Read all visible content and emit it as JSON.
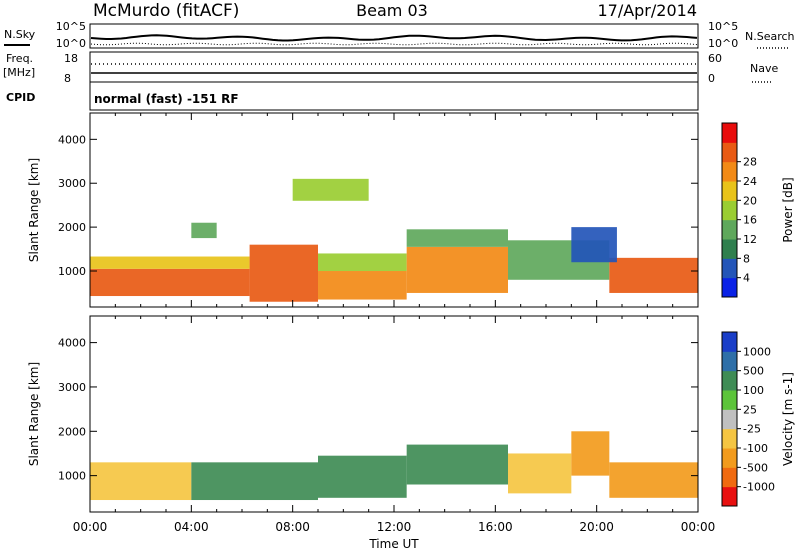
{
  "header": {
    "station": "McMurdo (fitACF)",
    "beam": "Beam 03",
    "date": "17/Apr/2014"
  },
  "summary": {
    "nsky_label": "N.Sky",
    "nsky_ticks": [
      "10^5",
      "10^0"
    ],
    "nsearch_label": "N.Search",
    "nsearch_ticks": [
      "10^5",
      "10^0"
    ],
    "freq_label_1": "Freq.",
    "freq_label_2": "[MHz]",
    "freq_ticks": [
      "18",
      "8"
    ],
    "nave_label": "Nave",
    "nave_ticks": [
      "60",
      "0"
    ],
    "cpid_label": "CPID",
    "cpid_text": "normal (fast) -151 RF"
  },
  "chart_data": [
    {
      "type": "heatmap",
      "name": "power-panel",
      "title": "",
      "xlabel": "",
      "ylabel": "Slant Range [km]",
      "xlim": [
        0,
        24
      ],
      "ylim": [
        180,
        4600
      ],
      "yticks": [
        1000,
        2000,
        3000,
        4000
      ],
      "colorbar": {
        "label": "Power [dB]",
        "ticks": [
          "4",
          "8",
          "12",
          "16",
          "20",
          "24",
          "28"
        ],
        "colors": [
          "#0a22e6",
          "#2355b8",
          "#2f7f4e",
          "#5fa85c",
          "#9acd32",
          "#e8c31a",
          "#f28a16",
          "#e85a14",
          "#e80c0c"
        ]
      },
      "regions": [
        {
          "t0": 0.0,
          "t1": 6.3,
          "r0": 430,
          "r1": 1050,
          "level": 28
        },
        {
          "t0": 0.0,
          "t1": 6.3,
          "r0": 1050,
          "r1": 1330,
          "level": 20
        },
        {
          "t0": 6.3,
          "t1": 9.0,
          "r0": 300,
          "r1": 1600,
          "level": 28
        },
        {
          "t0": 9.0,
          "t1": 12.5,
          "r0": 350,
          "r1": 1000,
          "level": 24
        },
        {
          "t0": 9.0,
          "t1": 12.5,
          "r0": 1000,
          "r1": 1400,
          "level": 16
        },
        {
          "t0": 12.5,
          "t1": 16.5,
          "r0": 500,
          "r1": 1550,
          "level": 24
        },
        {
          "t0": 12.5,
          "t1": 16.5,
          "r0": 1550,
          "r1": 1950,
          "level": 12
        },
        {
          "t0": 16.5,
          "t1": 20.5,
          "r0": 800,
          "r1": 1700,
          "level": 12
        },
        {
          "t0": 20.5,
          "t1": 24.0,
          "r0": 500,
          "r1": 1300,
          "level": 28
        },
        {
          "t0": 4.0,
          "t1": 5.0,
          "r0": 1750,
          "r1": 2100,
          "level": 12
        },
        {
          "t0": 8.0,
          "t1": 11.0,
          "r0": 2600,
          "r1": 3100,
          "level": 16
        },
        {
          "t0": 19.0,
          "t1": 20.8,
          "r0": 1200,
          "r1": 2000,
          "level": 4
        }
      ]
    },
    {
      "type": "heatmap",
      "name": "velocity-panel",
      "title": "",
      "xlabel": "Time UT",
      "ylabel": "Slant Range [km]",
      "xlim": [
        0,
        24
      ],
      "ylim": [
        180,
        4600
      ],
      "yticks": [
        1000,
        2000,
        3000,
        4000
      ],
      "xticks": [
        "00:00",
        "04:00",
        "08:00",
        "12:00",
        "16:00",
        "20:00",
        "00:00"
      ],
      "colorbar": {
        "label": "Velocity [m s-1]",
        "ticks": [
          "1000",
          "500",
          "100",
          "25",
          "-25",
          "-100",
          "-500",
          "-1000"
        ],
        "colors": [
          "#1a3ec8",
          "#2e6fa8",
          "#3f8c55",
          "#5cc43a",
          "#c0c0c0",
          "#f5c542",
          "#f29b1d",
          "#f06a10",
          "#e81010"
        ]
      },
      "regions": [
        {
          "t0": 0.0,
          "t1": 4.0,
          "r0": 450,
          "r1": 1300,
          "level": -100
        },
        {
          "t0": 4.0,
          "t1": 9.0,
          "r0": 450,
          "r1": 1300,
          "level": 100
        },
        {
          "t0": 9.0,
          "t1": 12.5,
          "r0": 500,
          "r1": 1450,
          "level": 100
        },
        {
          "t0": 12.5,
          "t1": 16.5,
          "r0": 800,
          "r1": 1700,
          "level": 100
        },
        {
          "t0": 16.5,
          "t1": 19.0,
          "r0": 600,
          "r1": 1500,
          "level": -100
        },
        {
          "t0": 19.0,
          "t1": 20.5,
          "r0": 1000,
          "r1": 2000,
          "level": -500
        },
        {
          "t0": 20.5,
          "t1": 24.0,
          "r0": 500,
          "r1": 1300,
          "level": -500
        }
      ]
    }
  ]
}
